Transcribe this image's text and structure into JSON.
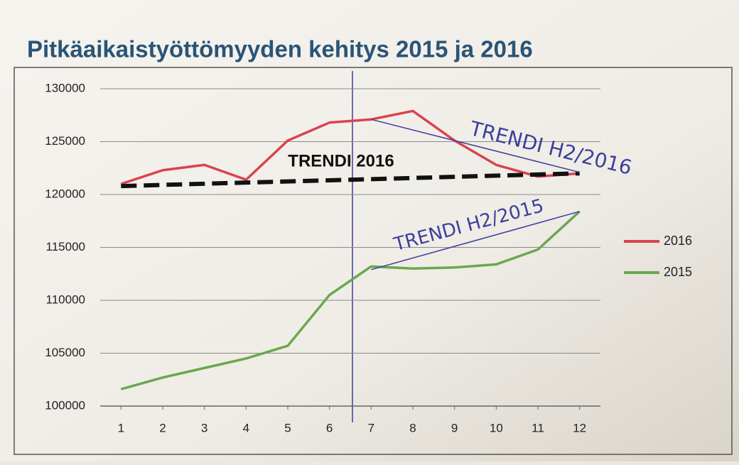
{
  "chart_data": {
    "type": "line",
    "title": "Pitkäaikaistyöttömyyden kehitys 2015 ja 2016",
    "x": [
      1,
      2,
      3,
      4,
      5,
      6,
      7,
      8,
      9,
      10,
      11,
      12
    ],
    "xlim": [
      0.5,
      12.5
    ],
    "xticks": [
      1,
      2,
      3,
      4,
      5,
      6,
      7,
      8,
      9,
      10,
      11,
      12
    ],
    "ylim": [
      100000,
      130000
    ],
    "yticks": [
      100000,
      105000,
      110000,
      115000,
      120000,
      125000,
      130000
    ],
    "grid": true,
    "legend": "right",
    "series": [
      {
        "name": "2016",
        "color": "#d9434e",
        "values": [
          121000,
          122300,
          122800,
          121400,
          125100,
          126800,
          127100,
          127900,
          125100,
          122800,
          121700,
          122000
        ]
      },
      {
        "name": "2015",
        "color": "#6aa84f",
        "values": [
          101600,
          102700,
          103600,
          104500,
          105700,
          110500,
          113200,
          113000,
          113100,
          113400,
          114800,
          118400
        ]
      }
    ],
    "annotations": [
      {
        "text": "TRENDI 2016",
        "x": [
          1,
          12
        ],
        "y": [
          120800,
          122000
        ],
        "color": "#111111"
      },
      {
        "text": "TRENDI H2/2016",
        "x": [
          7,
          12
        ],
        "y": [
          127100,
          122100
        ],
        "color": "#3b3f9e"
      },
      {
        "text": "TRENDI H2/2015",
        "x": [
          7,
          12
        ],
        "y": [
          112900,
          118400
        ],
        "color": "#3b3f9e"
      }
    ]
  }
}
